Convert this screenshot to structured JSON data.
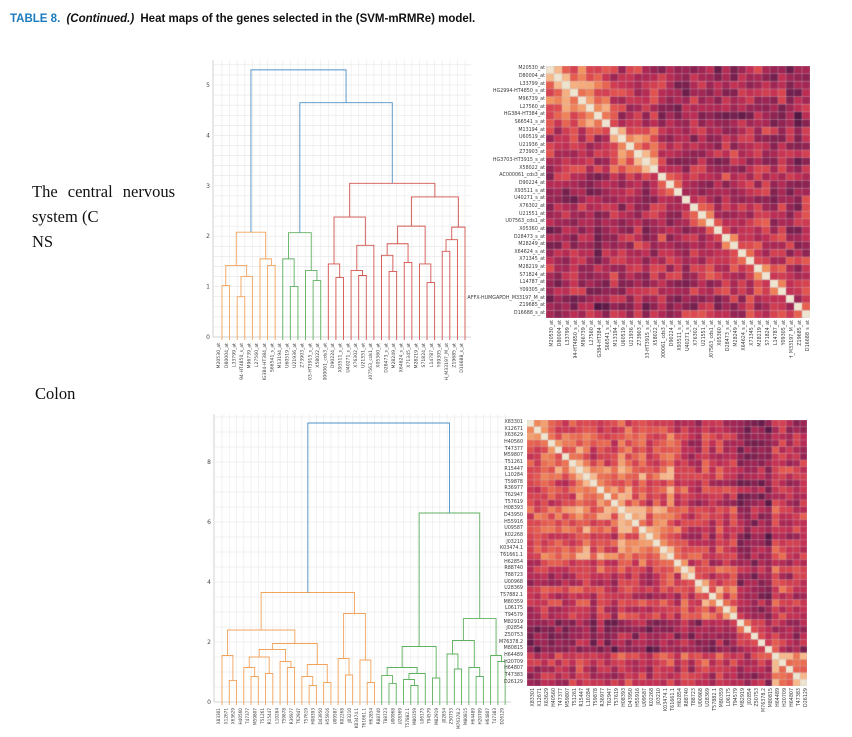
{
  "caption": {
    "tag": "TABLE 8.",
    "continued": "(Continued.)",
    "title": "Heat maps of the genes selected in the (SVM-mRMRe) model."
  },
  "palette": {
    "caption_tag": "#1b7bbe",
    "dend_blue": "#4f90c6",
    "dend_orange": "#f2a35b",
    "dend_green": "#5fb05f",
    "dend_red": "#d4544f",
    "tick_text": "#4a4a4a",
    "grid_vertical": "#ececec",
    "grid_horizontal": "#e4e4e4",
    "axis_line": "#c5c5c5",
    "heat_gridline": "rgba(205,200,208,0.65)"
  },
  "colormap": [
    [
      0,
      "#1a0c2e"
    ],
    [
      0.15,
      "#45123f"
    ],
    [
      0.3,
      "#701f4c"
    ],
    [
      0.45,
      "#9b2554"
    ],
    [
      0.58,
      "#c02e54"
    ],
    [
      0.7,
      "#dd4a4f"
    ],
    [
      0.8,
      "#ea6b50"
    ],
    [
      0.88,
      "#f2935f"
    ],
    [
      0.95,
      "#f6b98c"
    ],
    [
      1,
      "#eee4cf"
    ]
  ],
  "chart_data": [
    {
      "type": "dendrogram+heatmap",
      "name": "cns",
      "side_label_lines": [
        "The central nervous",
        "system (C",
        "NS"
      ],
      "dendrogram": {
        "leaves": 33,
        "ymax": 5.5,
        "yticks": [
          0,
          1,
          2,
          3,
          4,
          5
        ],
        "cluster_sizes": {
          "orange": 8,
          "green": 6,
          "red": 19
        },
        "root_height": 5.3,
        "merges": [
          [
            0,
            1,
            1.02,
            "o"
          ],
          [
            2,
            3,
            0.8,
            "o"
          ],
          [
            34,
            4,
            1.2,
            "o"
          ],
          [
            33,
            35,
            1.42,
            "o"
          ],
          [
            6,
            7,
            1.42,
            "o"
          ],
          [
            5,
            37,
            1.55,
            "o"
          ],
          [
            36,
            38,
            2.08,
            "o"
          ],
          [
            9,
            10,
            1.0,
            "g"
          ],
          [
            8,
            40,
            1.55,
            "g"
          ],
          [
            12,
            13,
            1.12,
            "g"
          ],
          [
            11,
            42,
            1.32,
            "g"
          ],
          [
            41,
            43,
            2.07,
            "g"
          ],
          [
            15,
            16,
            1.18,
            "r"
          ],
          [
            14,
            45,
            1.45,
            "r"
          ],
          [
            18,
            19,
            1.22,
            "r"
          ],
          [
            17,
            47,
            1.32,
            "r"
          ],
          [
            48,
            20,
            1.82,
            "r"
          ],
          [
            46,
            49,
            2.38,
            "r"
          ],
          [
            22,
            23,
            1.3,
            "r"
          ],
          [
            21,
            51,
            1.62,
            "r"
          ],
          [
            24,
            25,
            1.48,
            "r"
          ],
          [
            52,
            53,
            1.85,
            "r"
          ],
          [
            27,
            28,
            1.08,
            "r"
          ],
          [
            26,
            55,
            1.45,
            "r"
          ],
          [
            54,
            56,
            2.2,
            "r"
          ],
          [
            29,
            30,
            1.7,
            "r"
          ],
          [
            58,
            31,
            1.93,
            "r"
          ],
          [
            59,
            32,
            2.18,
            "r"
          ],
          [
            57,
            60,
            2.78,
            "r"
          ],
          [
            50,
            61,
            3.05,
            "r"
          ],
          [
            44,
            62,
            4.65,
            "b"
          ],
          [
            39,
            63,
            5.3,
            "b"
          ]
        ]
      },
      "heatmap": {
        "n": 33,
        "labels": [
          "M20530_at",
          "D80004_at",
          "L33799_at",
          "HG2994-HT4850_s_at",
          "M96739_at",
          "L27560_at",
          "HG384-HT384_at",
          "S66541_s_at",
          "M13194_at",
          "U60519_at",
          "U21936_at",
          "Z73903_at",
          "HG3703-HT3915_s_at",
          "X58022_at",
          "AC000061_cds3_at",
          "D90224_at",
          "X93511_s_at",
          "U40271_s_at",
          "X76302_at",
          "U21551_at",
          "U07563_cds1_at",
          "X05360_at",
          "D28473_s_at",
          "M28249_at",
          "X64624_s_at",
          "X71345_at",
          "M28219_at",
          "S71824_at",
          "L14787_at",
          "Y09305_at",
          "AFFX-HUMGAPDH_M33197_M_at",
          "Z19685_at",
          "D16688_s_at"
        ],
        "diagonal_value": 1,
        "blocks": [
          [
            0,
            8
          ],
          [
            8,
            14
          ],
          [
            14,
            33
          ]
        ],
        "levels": [
          [
            0.7,
            0.56,
            0.48
          ],
          [
            0.56,
            0.66,
            0.52
          ],
          [
            0.48,
            0.52,
            0.55
          ]
        ],
        "noise": 0.17,
        "prox": 0.18,
        "seed": 11
      }
    },
    {
      "type": "dendrogram+heatmap",
      "name": "colon",
      "side_label_lines": [
        "Colon"
      ],
      "dendrogram": {
        "leaves": 40,
        "ymax": 9.6,
        "yticks": [
          0,
          2,
          4,
          6,
          8
        ],
        "cluster_sizes": {
          "orange": 22,
          "green": 18
        },
        "root_height": 9.3,
        "merges": [
          [
            1,
            2,
            0.72,
            "o"
          ],
          [
            0,
            40,
            1.55,
            "o"
          ],
          [
            4,
            5,
            0.85,
            "o"
          ],
          [
            3,
            42,
            1.15,
            "o"
          ],
          [
            6,
            7,
            0.95,
            "o"
          ],
          [
            43,
            44,
            1.5,
            "o"
          ],
          [
            9,
            10,
            1.15,
            "o"
          ],
          [
            8,
            46,
            1.35,
            "o"
          ],
          [
            45,
            47,
            1.75,
            "o"
          ],
          [
            12,
            13,
            0.55,
            "o"
          ],
          [
            11,
            49,
            0.85,
            "o"
          ],
          [
            14,
            15,
            0.65,
            "o"
          ],
          [
            50,
            51,
            1.25,
            "o"
          ],
          [
            48,
            52,
            1.95,
            "o"
          ],
          [
            41,
            53,
            2.4,
            "o"
          ],
          [
            17,
            18,
            0.9,
            "o"
          ],
          [
            16,
            55,
            1.45,
            "o"
          ],
          [
            20,
            21,
            0.65,
            "o"
          ],
          [
            19,
            57,
            1.4,
            "o"
          ],
          [
            56,
            58,
            2.95,
            "o"
          ],
          [
            54,
            59,
            3.65,
            "o"
          ],
          [
            23,
            24,
            0.62,
            "g"
          ],
          [
            22,
            61,
            0.88,
            "g"
          ],
          [
            26,
            27,
            0.55,
            "g"
          ],
          [
            25,
            63,
            0.75,
            "g"
          ],
          [
            64,
            28,
            0.95,
            "g"
          ],
          [
            62,
            65,
            1.15,
            "g"
          ],
          [
            29,
            30,
            0.8,
            "g"
          ],
          [
            66,
            67,
            1.85,
            "g"
          ],
          [
            32,
            33,
            1.1,
            "g"
          ],
          [
            31,
            69,
            1.6,
            "g"
          ],
          [
            35,
            36,
            0.85,
            "g"
          ],
          [
            34,
            71,
            1.15,
            "g"
          ],
          [
            70,
            72,
            2.05,
            "g"
          ],
          [
            38,
            39,
            1.35,
            "g"
          ],
          [
            37,
            74,
            1.55,
            "g"
          ],
          [
            73,
            75,
            2.78,
            "g"
          ],
          [
            68,
            76,
            6.3,
            "g"
          ],
          [
            60,
            77,
            9.3,
            "b"
          ]
        ]
      },
      "heatmap": {
        "n": 40,
        "labels": [
          "X83301",
          "X12671",
          "X63629",
          "H40560",
          "T47377",
          "M59807",
          "T51261",
          "R15447",
          "L10284",
          "T59878",
          "R36977",
          "T62947",
          "T57619",
          "H08393",
          "D43950",
          "H55916",
          "U09587",
          "K02268",
          "J03210",
          "K03474.1",
          "T61661.1",
          "H62854",
          "R88740",
          "T88723",
          "U00968",
          "U28369",
          "T57882.1",
          "M80359",
          "L06175",
          "T94579",
          "M82919",
          "J02854",
          "Z50753",
          "M76378.2",
          "M80815",
          "H64489",
          "H20709",
          "H64807",
          "T47383",
          "D26129"
        ],
        "diagonal_value": 1,
        "blocks": [
          [
            0,
            22
          ],
          [
            22,
            30
          ],
          [
            30,
            35
          ],
          [
            35,
            40
          ]
        ],
        "levels": [
          [
            0.74,
            0.62,
            0.38,
            0.6
          ],
          [
            0.62,
            0.68,
            0.4,
            0.62
          ],
          [
            0.38,
            0.4,
            0.46,
            0.42
          ],
          [
            0.6,
            0.62,
            0.42,
            0.76
          ]
        ],
        "noise": 0.13,
        "prox": 0.15,
        "seed": 23
      }
    }
  ]
}
